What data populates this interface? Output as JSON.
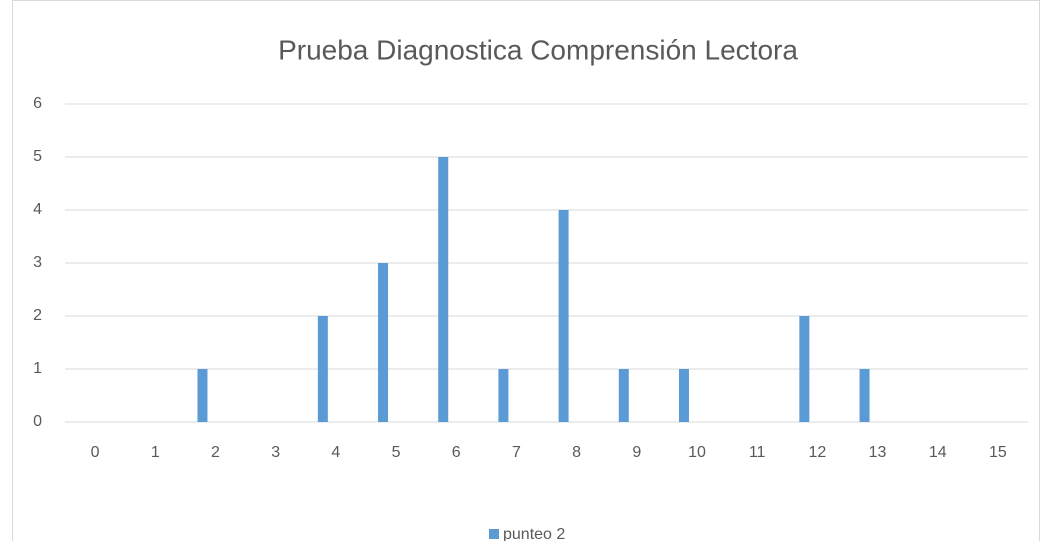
{
  "chart_data": {
    "type": "bar",
    "title": "Prueba Diagnostica Comprensión Lectora",
    "categories": [
      "0",
      "1",
      "2",
      "3",
      "4",
      "5",
      "6",
      "7",
      "8",
      "9",
      "10",
      "11",
      "12",
      "13",
      "14",
      "15"
    ],
    "series": [
      {
        "name": "punteo 2",
        "color": "#5b9bd5",
        "values": [
          0,
          0,
          1,
          0,
          2,
          3,
          5,
          1,
          4,
          1,
          1,
          0,
          2,
          1,
          0,
          0
        ]
      }
    ],
    "ylim": [
      0,
      6
    ],
    "yticks": [
      0,
      1,
      2,
      3,
      4,
      5,
      6
    ],
    "grid": true,
    "legend": "bottom"
  }
}
